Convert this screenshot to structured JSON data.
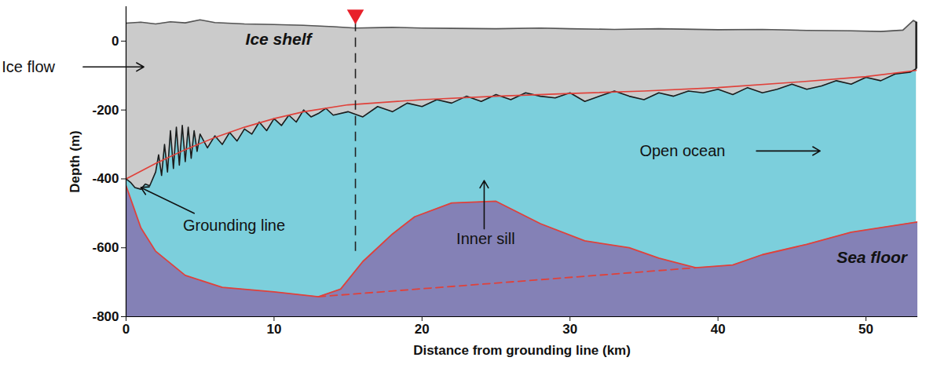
{
  "chart_data": {
    "type": "area",
    "x_label": "Distance from grounding line (km)",
    "y_label": "Depth (m)",
    "xlim": [
      0,
      53.5
    ],
    "xticks": [
      0,
      10,
      20,
      30,
      40,
      50
    ],
    "ylim": [
      -800,
      100
    ],
    "yticks": [
      -800,
      -600,
      -400,
      -200,
      0
    ],
    "grid": false,
    "ice_shelf": {
      "label": "Ice shelf",
      "color": "#cbcbcb"
    },
    "ocean": {
      "label": "Open ocean",
      "color": "#7ccfdc"
    },
    "sea_floor_region": {
      "label": "Sea floor",
      "color": "#8481b6"
    },
    "annotations": {
      "ice_flow": "Ice flow",
      "grounding_line": "Grounding line",
      "inner_sill": "Inner sill"
    },
    "section_marker": {
      "x": 15.5,
      "color": "#e8202a",
      "marker": "triangle"
    },
    "ice_surface": {
      "color": "#555555",
      "line_style": "solid",
      "x": [
        0,
        1,
        2,
        3,
        4,
        5,
        6,
        8,
        10,
        12,
        14,
        15.5,
        18,
        20,
        22,
        25,
        28,
        30,
        33,
        36,
        40,
        43,
        46,
        49,
        51,
        52.5,
        53.2,
        53.4
      ],
      "y": [
        52,
        55,
        50,
        56,
        53,
        62,
        54,
        50,
        48,
        46,
        42,
        38,
        40,
        38,
        37,
        36,
        38,
        36,
        34,
        36,
        33,
        34,
        31,
        30,
        28,
        32,
        60,
        55
      ]
    },
    "ice_base": {
      "color": "#1c1c1c",
      "line_style": "solid",
      "x": [
        0,
        0.3,
        0.6,
        1.0,
        1.3,
        1.6,
        2.0,
        2.2,
        2.4,
        2.6,
        2.8,
        3.0,
        3.2,
        3.4,
        3.6,
        3.8,
        4.0,
        4.2,
        4.4,
        4.6,
        4.8,
        5.0,
        5.5,
        6.0,
        6.5,
        7.0,
        7.5,
        8.0,
        8.5,
        9.0,
        9.5,
        10,
        10.5,
        11,
        11.5,
        12,
        12.5,
        13,
        13.5,
        14,
        15,
        16,
        17,
        18,
        19,
        20,
        21,
        22,
        23,
        24,
        25,
        26,
        27,
        28,
        29,
        30,
        31,
        32,
        33,
        34,
        35,
        36,
        37,
        38,
        39,
        40,
        41,
        42,
        43,
        44,
        45,
        46,
        47,
        48,
        49,
        50,
        51,
        52,
        53,
        53.4
      ],
      "y": [
        -400,
        -410,
        -425,
        -430,
        -415,
        -420,
        -380,
        -330,
        -390,
        -300,
        -380,
        -260,
        -370,
        -250,
        -360,
        -245,
        -350,
        -250,
        -340,
        -260,
        -320,
        -270,
        -310,
        -275,
        -300,
        -265,
        -290,
        -255,
        -270,
        -235,
        -260,
        -225,
        -245,
        -215,
        -235,
        -200,
        -220,
        -210,
        -195,
        -215,
        -205,
        -220,
        -190,
        -205,
        -180,
        -190,
        -170,
        -180,
        -160,
        -175,
        -155,
        -170,
        -150,
        -160,
        -165,
        -150,
        -175,
        -160,
        -145,
        -160,
        -170,
        -150,
        -160,
        -145,
        -150,
        -140,
        -155,
        -135,
        -150,
        -140,
        -125,
        -140,
        -130,
        -115,
        -125,
        -105,
        -115,
        -95,
        -90,
        -80
      ]
    },
    "ice_base_fit": {
      "color": "#e0413a",
      "line_style": "solid",
      "x": [
        0,
        2,
        4,
        6,
        8,
        10,
        12,
        15,
        20,
        25,
        30,
        35,
        40,
        45,
        50,
        53.4
      ],
      "y": [
        -400,
        -355,
        -315,
        -280,
        -250,
        -225,
        -205,
        -185,
        -170,
        -160,
        -152,
        -145,
        -135,
        -120,
        -103,
        -85
      ]
    },
    "sea_floor": {
      "color": "#e0413a",
      "line_style": "solid",
      "x": [
        0,
        1,
        2,
        4,
        6.5,
        10,
        13,
        14.5,
        16,
        18,
        19.5,
        22,
        25,
        28,
        31,
        34,
        36,
        38.5,
        41,
        43,
        46,
        49,
        53.5
      ],
      "y": [
        -420,
        -542,
        -610,
        -680,
        -715,
        -728,
        -742,
        -720,
        -640,
        -560,
        -510,
        -470,
        -465,
        -530,
        -580,
        -600,
        -630,
        -658,
        -650,
        -620,
        -590,
        -555,
        -525
      ]
    },
    "sea_floor_extrapolated": {
      "color": "#e0413a",
      "line_style": "dashed",
      "x": [
        13,
        38.5
      ],
      "y": [
        -742,
        -658
      ]
    }
  }
}
